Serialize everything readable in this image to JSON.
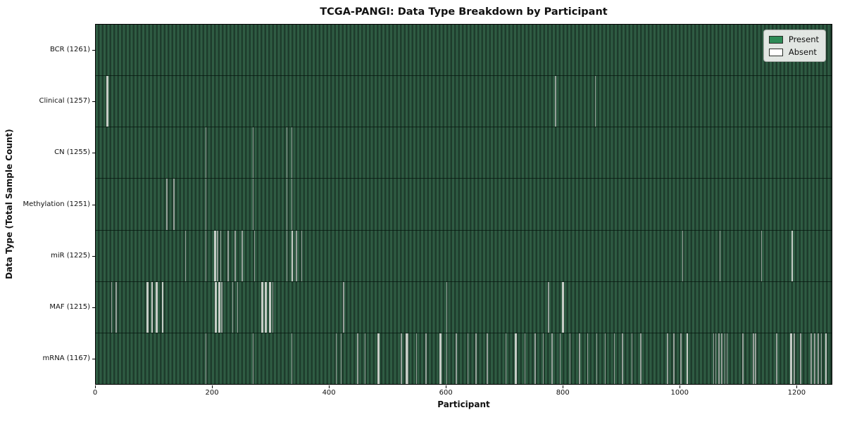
{
  "colors": {
    "present": "#2e8b57",
    "absent": "#ffffff",
    "stripe_light": "#2f5c43",
    "stripe_dark": "#1e3c2c",
    "absent_line": "#96a09a",
    "absent_line_bright": "#c6ccc6",
    "legend_bg": "#eceeec",
    "figure_bg": "#ffffff"
  },
  "legend": {
    "items": [
      {
        "name": "present",
        "label": "Present",
        "color": "#2e8b57"
      },
      {
        "name": "absent",
        "label": "Absent",
        "color": "#ffffff"
      }
    ]
  },
  "chart_data": {
    "type": "heatmap",
    "title": "TCGA-PANGI: Data Type Breakdown by Participant",
    "xlabel": "Participant",
    "ylabel": "Data Type (Total Sample Count)",
    "xlim": [
      0,
      1261
    ],
    "x_ticks": [
      0,
      200,
      400,
      600,
      800,
      1000,
      1200
    ],
    "grid": false,
    "legend_position": "upper right",
    "value_encoding": {
      "present": "green cell",
      "absent": "white gap"
    },
    "rows": [
      {
        "name": "BCR",
        "label": "BCR (1261)",
        "total_samples": 1261,
        "absent": [],
        "absent_bright": []
      },
      {
        "name": "Clinical",
        "label": "Clinical (1257)",
        "total_samples": 1257,
        "absent": [
          787,
          855
        ],
        "absent_bright": [
          18
        ]
      },
      {
        "name": "CN",
        "label": "CN (1255)",
        "total_samples": 1255,
        "absent": [
          188,
          269,
          327,
          335
        ],
        "absent_bright": []
      },
      {
        "name": "Methylation",
        "label": "Methylation (1251)",
        "total_samples": 1251,
        "absent": [
          121,
          133,
          188,
          269,
          327,
          335
        ],
        "absent_bright": []
      },
      {
        "name": "miR",
        "label": "miR (1225)",
        "total_samples": 1225,
        "absent": [
          153,
          188,
          208,
          213,
          226,
          238,
          250,
          271,
          327,
          343,
          352,
          1005,
          1069,
          1140
        ],
        "absent_bright": [
          203,
          335,
          1192
        ]
      },
      {
        "name": "MAF",
        "label": "MAF (1215)",
        "total_samples": 1215,
        "absent": [
          26,
          34,
          215,
          234,
          242,
          303,
          424,
          601,
          775
        ],
        "absent_bright": [
          87,
          95,
          103,
          113,
          204,
          210,
          284,
          290,
          297,
          799
        ]
      },
      {
        "name": "mRNA",
        "label": "mRNA (1167)",
        "total_samples": 1167,
        "absent": [
          188,
          269,
          335,
          411,
          420,
          448,
          461,
          523,
          534,
          549,
          565,
          601,
          617,
          637,
          651,
          670,
          702,
          735,
          752,
          766,
          781,
          795,
          812,
          828,
          842,
          858,
          872,
          888,
          902,
          918,
          933,
          979,
          990,
          1002,
          1058,
          1062,
          1067,
          1072,
          1077,
          1081,
          1108,
          1126,
          1130,
          1166,
          1196,
          1207,
          1225,
          1231,
          1237,
          1243
        ],
        "absent_bright": [
          483,
          531,
          589,
          718,
          1012,
          1190,
          1250
        ]
      }
    ]
  }
}
